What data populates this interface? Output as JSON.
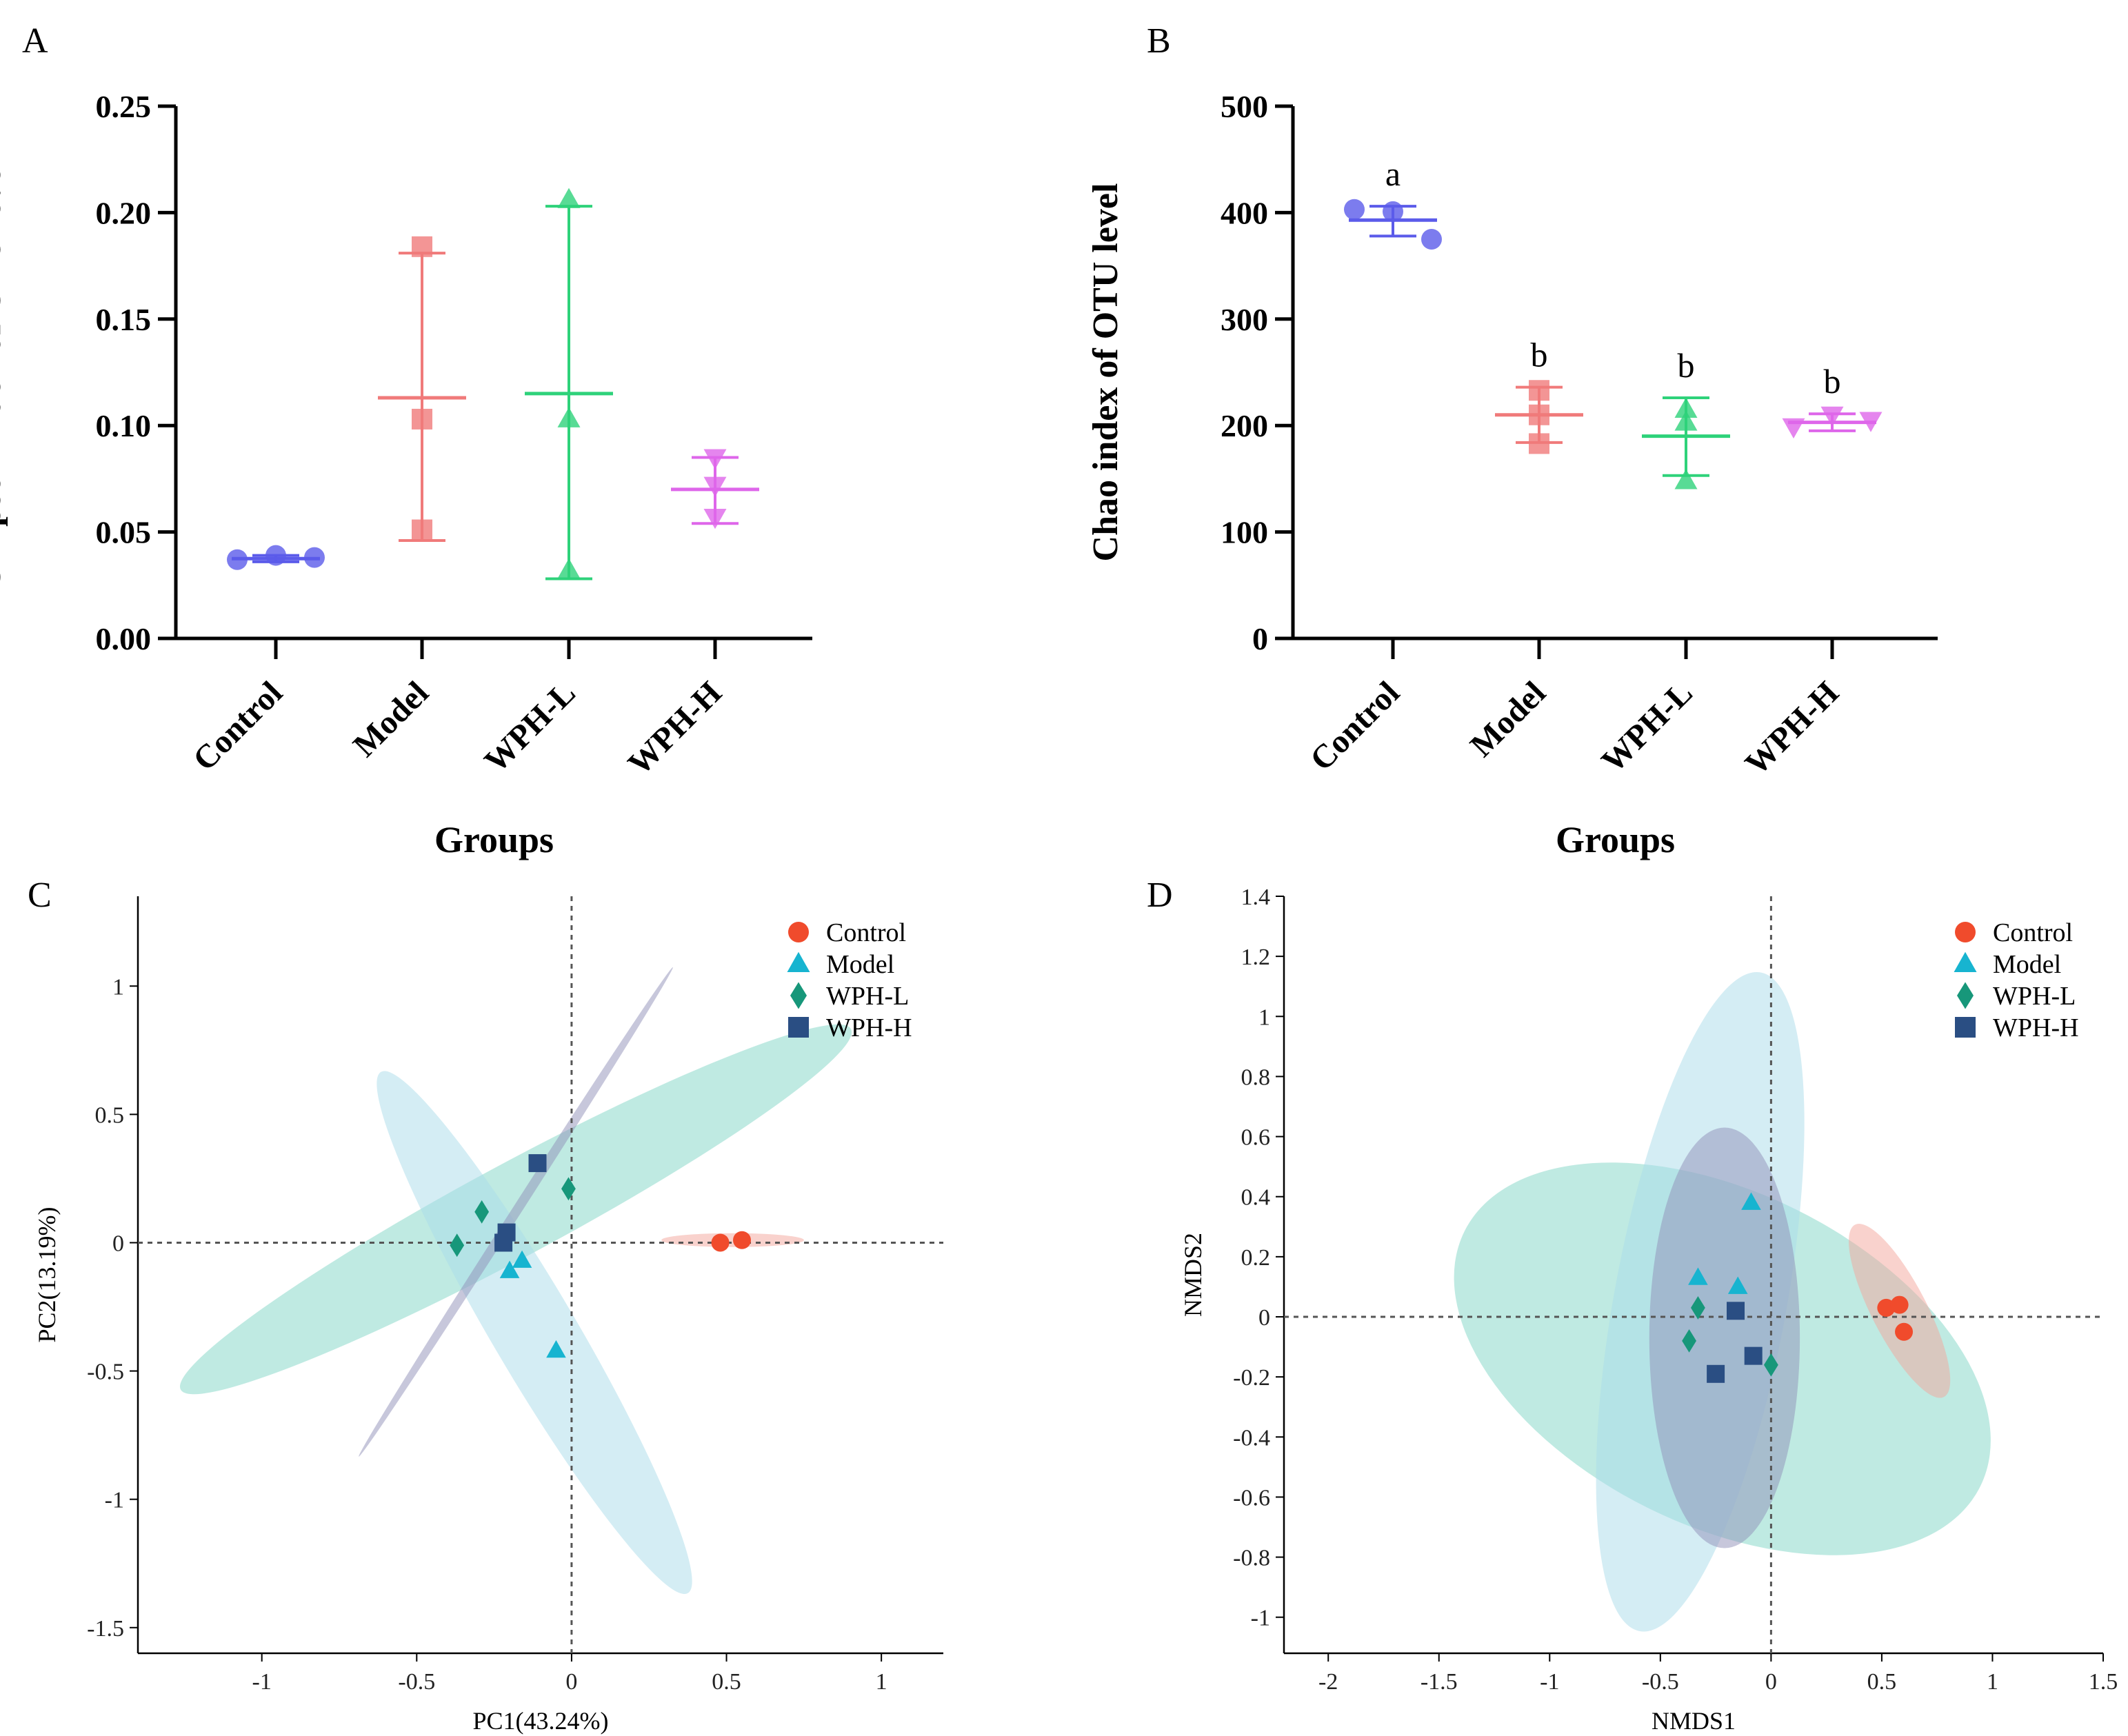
{
  "figure": {
    "panel_letters": [
      "A",
      "B",
      "C",
      "D"
    ]
  },
  "colors": {
    "Control_bar": "#5b5bea",
    "Model_bar": "#f07a7a",
    "WPH-L_bar": "#2ed27a",
    "WPH-H_bar": "#de66ea",
    "Control_scatter": "#f04b2c",
    "Model_scatter": "#17b4d0",
    "WPH-L_scatter": "#17977a",
    "WPH-H_scatter": "#2a4e83",
    "ellipse_Control": "#f4a69c",
    "ellipse_Model": "#a9dcea",
    "ellipse_WPH-L": "#7fd6c5",
    "ellipse_WPH-H": "#8f8fb8"
  },
  "chart_data": [
    {
      "panel": "A",
      "type": "scatter",
      "subtype": "dot-plot with mean and SD",
      "title": "",
      "xlabel": "Groups",
      "ylabel": "Simpson index of OTU level",
      "ylim": [
        0,
        0.25
      ],
      "yticks": [
        "0.00",
        "0.05",
        "0.10",
        "0.15",
        "0.20",
        "0.25"
      ],
      "categories": [
        "Control",
        "Model",
        "WPH-L",
        "WPH-H"
      ],
      "markers": [
        "circle",
        "square",
        "triangle-up",
        "triangle-down"
      ],
      "points": [
        [
          0.037,
          0.039,
          0.038
        ],
        [
          0.184,
          0.103,
          0.051
        ],
        [
          0.206,
          0.103,
          0.032
        ],
        [
          0.085,
          0.072,
          0.057
        ]
      ],
      "mean": [
        0.0375,
        0.113,
        0.115,
        0.07
      ],
      "sd_low": [
        0.036,
        0.046,
        0.028,
        0.054
      ],
      "sd_high": [
        0.039,
        0.181,
        0.203,
        0.085
      ],
      "significance": [
        "",
        "",
        "",
        ""
      ]
    },
    {
      "panel": "B",
      "type": "scatter",
      "subtype": "dot-plot with mean and SD",
      "title": "",
      "xlabel": "Groups",
      "ylabel": "Chao index of OTU level",
      "ylim": [
        0,
        500
      ],
      "yticks": [
        "0",
        "100",
        "200",
        "300",
        "400",
        "500"
      ],
      "categories": [
        "Control",
        "Model",
        "WPH-L",
        "WPH-H"
      ],
      "markers": [
        "circle",
        "square",
        "triangle-up",
        "triangle-down"
      ],
      "points": [
        [
          403,
          401,
          375
        ],
        [
          233,
          210,
          183
        ],
        [
          215,
          203,
          148
        ],
        [
          199,
          210,
          205
        ]
      ],
      "mean": [
        393,
        210,
        190,
        203
      ],
      "sd_low": [
        378,
        184,
        153,
        195
      ],
      "sd_high": [
        406,
        236,
        226,
        211
      ],
      "significance": [
        "a",
        "b",
        "b",
        "b"
      ]
    },
    {
      "panel": "C",
      "type": "scatter",
      "subtype": "PCA with confidence ellipses",
      "title": "",
      "xlabel": "PC1(43.24%)",
      "ylabel": "PC2(13.19%)",
      "xlim": [
        -1.4,
        1.2
      ],
      "ylim": [
        -1.6,
        1.35
      ],
      "xticks": [
        "-1",
        "-0.5",
        "0",
        "0.5",
        "1"
      ],
      "yticks": [
        "-1.5",
        "-1",
        "-0.5",
        "0",
        "0.5",
        "1"
      ],
      "legend": [
        "Control",
        "Model",
        "WPH-L",
        "WPH-H"
      ],
      "legend_position": "top-right",
      "series": [
        {
          "name": "Control",
          "marker": "circle",
          "points": [
            [
              0.48,
              0.0
            ],
            [
              0.55,
              0.01
            ]
          ]
        },
        {
          "name": "Model",
          "marker": "triangle-up",
          "points": [
            [
              -0.2,
              -0.11
            ],
            [
              -0.16,
              -0.07
            ],
            [
              -0.05,
              -0.42
            ]
          ]
        },
        {
          "name": "WPH-L",
          "marker": "diamond",
          "points": [
            [
              -0.29,
              0.12
            ],
            [
              -0.37,
              -0.01
            ],
            [
              -0.01,
              0.21
            ]
          ]
        },
        {
          "name": "WPH-H",
          "marker": "square",
          "points": [
            [
              -0.11,
              0.31
            ],
            [
              -0.21,
              0.04
            ],
            [
              -0.22,
              0.0
            ]
          ]
        }
      ],
      "ellipses": [
        {
          "group": "WPH-L",
          "cx": -0.18,
          "cy": 0.13,
          "semi_major": 1.29,
          "semi_minor": 0.17,
          "angle_deg": 33
        },
        {
          "group": "Model",
          "cx": -0.12,
          "cy": -0.35,
          "semi_major": 1.13,
          "semi_minor": 0.14,
          "angle_deg": -64
        },
        {
          "group": "WPH-H",
          "cx": -0.18,
          "cy": 0.12,
          "semi_major": 1.08,
          "semi_minor": 0.016,
          "angle_deg": 62
        },
        {
          "group": "Control",
          "cx": 0.52,
          "cy": 0.01,
          "semi_major": 0.23,
          "semi_minor": 0.027,
          "angle_deg": 0
        }
      ]
    },
    {
      "panel": "D",
      "type": "scatter",
      "subtype": "NMDS with confidence ellipses",
      "title": "",
      "xlabel": "NMDS1",
      "ylabel": "NMDS2",
      "xlim": [
        -2.2,
        1.5
      ],
      "ylim": [
        -1.12,
        1.4
      ],
      "xticks": [
        "-2",
        "-1.5",
        "-1",
        "-0.5",
        "0",
        "0.5",
        "1",
        "1.5"
      ],
      "yticks": [
        "-1",
        "-0.8",
        "-0.6",
        "-0.4",
        "-0.2",
        "0",
        "0.2",
        "0.4",
        "0.6",
        "0.8",
        "1",
        "1.2",
        "1.4"
      ],
      "legend": [
        "Control",
        "Model",
        "WPH-L",
        "WPH-H"
      ],
      "legend_position": "top-right",
      "series": [
        {
          "name": "Control",
          "marker": "circle",
          "points": [
            [
              0.52,
              0.03
            ],
            [
              0.58,
              0.04
            ],
            [
              0.6,
              -0.05
            ]
          ]
        },
        {
          "name": "Model",
          "marker": "triangle-up",
          "points": [
            [
              -0.33,
              0.13
            ],
            [
              -0.15,
              0.1
            ],
            [
              -0.09,
              0.38
            ]
          ]
        },
        {
          "name": "WPH-L",
          "marker": "diamond",
          "points": [
            [
              -0.33,
              0.03
            ],
            [
              -0.37,
              -0.08
            ],
            [
              0.0,
              -0.16
            ]
          ]
        },
        {
          "name": "WPH-H",
          "marker": "square",
          "points": [
            [
              -0.25,
              -0.19
            ],
            [
              -0.16,
              0.02
            ],
            [
              -0.08,
              -0.13
            ]
          ]
        }
      ],
      "ellipses": [
        {
          "group": "WPH-L",
          "cx": -0.22,
          "cy": -0.14,
          "semi_major": 1.24,
          "semi_minor": 0.57,
          "angle_deg": -20
        },
        {
          "group": "Model",
          "cx": -0.32,
          "cy": 0.05,
          "semi_major": 1.13,
          "semi_minor": 0.38,
          "angle_deg": 76
        },
        {
          "group": "WPH-H",
          "cx": -0.21,
          "cy": -0.07,
          "semi_major": 0.7,
          "semi_minor": 0.34,
          "angle_deg": 90
        },
        {
          "group": "Control",
          "cx": 0.58,
          "cy": 0.02,
          "semi_major": 0.35,
          "semi_minor": 0.11,
          "angle_deg": -55
        }
      ]
    }
  ]
}
